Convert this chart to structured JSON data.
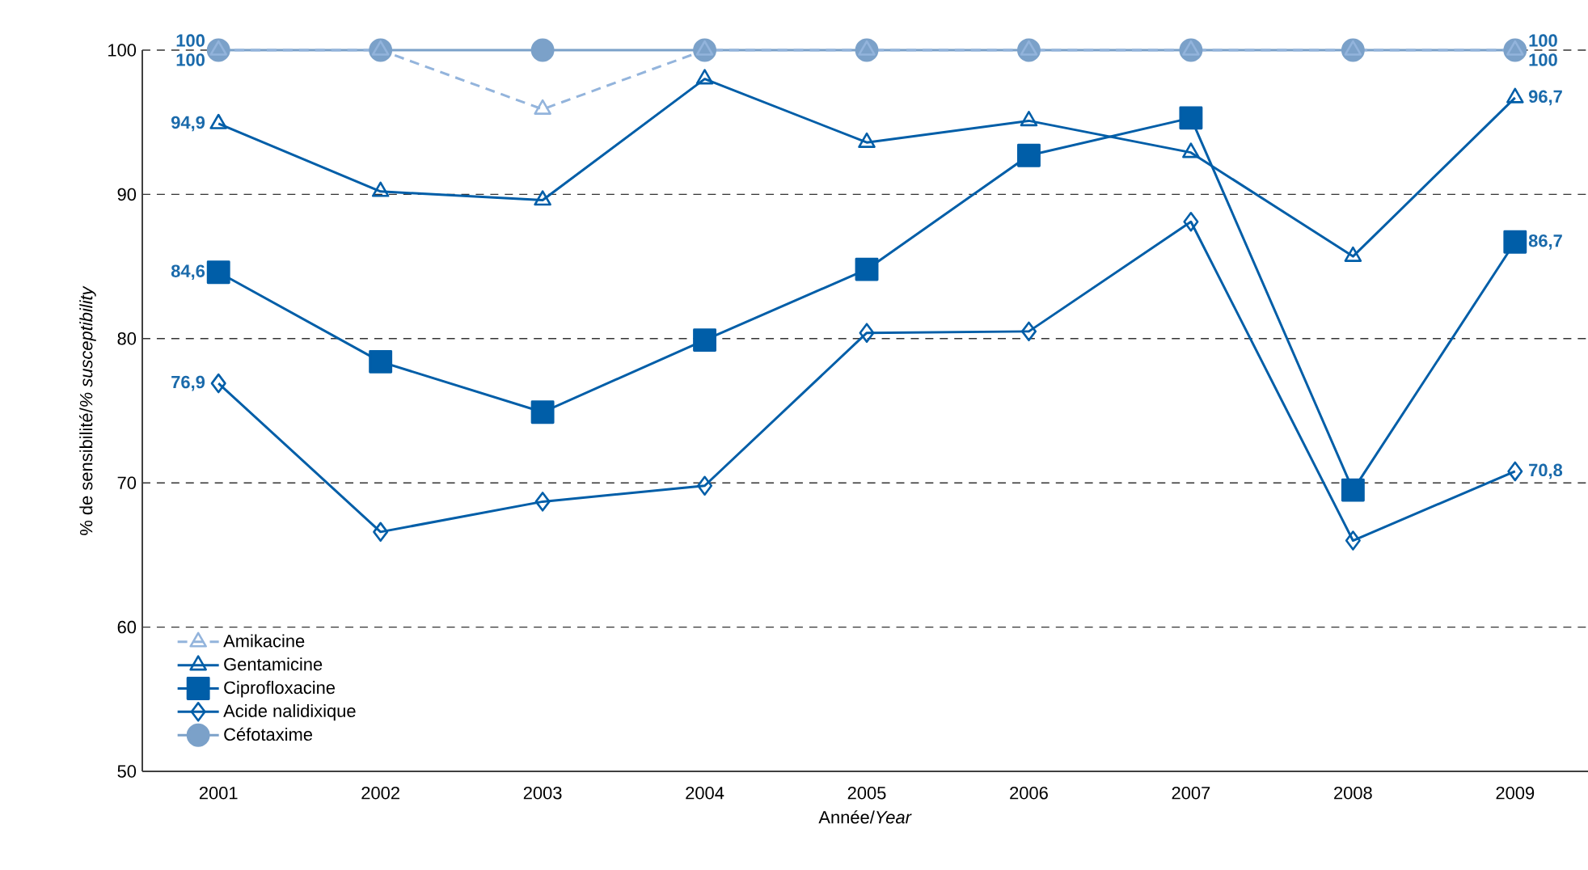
{
  "chart_data": {
    "type": "line",
    "xlabel": "Année/*Year*",
    "ylabel": "% de sensibilité/*% susceptibility*",
    "categories": [
      "2001",
      "2002",
      "2003",
      "2004",
      "2005",
      "2006",
      "2007",
      "2008",
      "2009"
    ],
    "ylim": [
      50,
      100
    ],
    "yticks": [
      50,
      60,
      70,
      80,
      90,
      100
    ],
    "grid": "y",
    "legend": "bottom left",
    "series": [
      {
        "name": "Amikacine",
        "color": "#93b4dc",
        "marker": "triangle",
        "line_style": "dashed",
        "values": [
          100,
          100,
          95.9,
          100,
          100,
          100,
          100,
          100,
          100
        ],
        "value_labels": [
          "100",
          null,
          null,
          null,
          null,
          null,
          null,
          null,
          "100"
        ]
      },
      {
        "name": "Gentamicine",
        "color": "#005ea8",
        "marker": "triangle",
        "line_style": "solid",
        "values": [
          94.9,
          90.2,
          89.6,
          98.0,
          93.6,
          95.1,
          92.9,
          85.7,
          96.7
        ],
        "value_labels": [
          "94,9",
          null,
          null,
          null,
          null,
          null,
          null,
          null,
          "96,7"
        ]
      },
      {
        "name": "Ciprofloxacine",
        "color": "#005ea8",
        "marker": "square",
        "line_style": "solid",
        "values": [
          84.6,
          78.4,
          74.9,
          79.9,
          84.8,
          92.7,
          95.3,
          69.5,
          86.7
        ],
        "value_labels": [
          "84,6",
          null,
          null,
          null,
          null,
          null,
          null,
          null,
          "86,7"
        ]
      },
      {
        "name": "Acide nalidixique",
        "color": "#005ea8",
        "marker": "diamond",
        "line_style": "solid",
        "values": [
          76.9,
          66.6,
          68.7,
          69.8,
          80.4,
          80.5,
          88.1,
          66.0,
          70.8
        ],
        "value_labels": [
          "76,9",
          null,
          null,
          null,
          null,
          null,
          null,
          null,
          "70,8"
        ]
      },
      {
        "name": "Céfotaxime",
        "color": "#7ba1c9",
        "marker": "circle",
        "line_style": "solid",
        "values": [
          100,
          100,
          100,
          100,
          100,
          100,
          100,
          100,
          100
        ],
        "value_labels": [
          "100",
          null,
          null,
          null,
          null,
          null,
          null,
          null,
          "100"
        ]
      }
    ]
  }
}
